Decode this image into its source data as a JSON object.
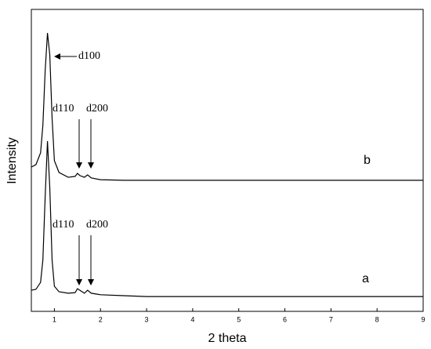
{
  "chart_data": {
    "type": "line",
    "x_label": "2 theta",
    "y_label": "Intensity",
    "x": [
      0.5,
      0.6,
      0.7,
      0.75,
      0.8,
      0.85,
      0.9,
      0.95,
      1.0,
      1.1,
      1.3,
      1.45,
      1.5,
      1.55,
      1.65,
      1.72,
      1.8,
      2.0,
      2.5,
      3.0,
      9.0
    ],
    "series": [
      {
        "name": "a",
        "color": "#000000",
        "values": [
          7,
          7.3,
          9.6,
          17,
          38,
          56.4,
          41,
          17,
          8.3,
          6.5,
          6,
          6.2,
          7.5,
          7,
          6,
          7,
          6,
          5.5,
          5.2,
          4.9,
          4.9
        ]
      },
      {
        "name": "b",
        "color": "#000000",
        "values": [
          47.8,
          48.6,
          52.5,
          61.6,
          79.7,
          92.2,
          85,
          64,
          49.9,
          46,
          44.4,
          44.7,
          45.7,
          45,
          44.4,
          45.2,
          44.2,
          43.6,
          43.4,
          43.4,
          43.4
        ]
      }
    ],
    "annotations": [
      "d100",
      "d110",
      "d200",
      "d110",
      "d200"
    ],
    "xlim": [
      0.5,
      9
    ],
    "xticks": [
      1,
      2,
      3,
      4,
      5,
      6,
      7,
      8,
      9
    ],
    "ylim": [
      0,
      100
    ],
    "grid": false
  }
}
